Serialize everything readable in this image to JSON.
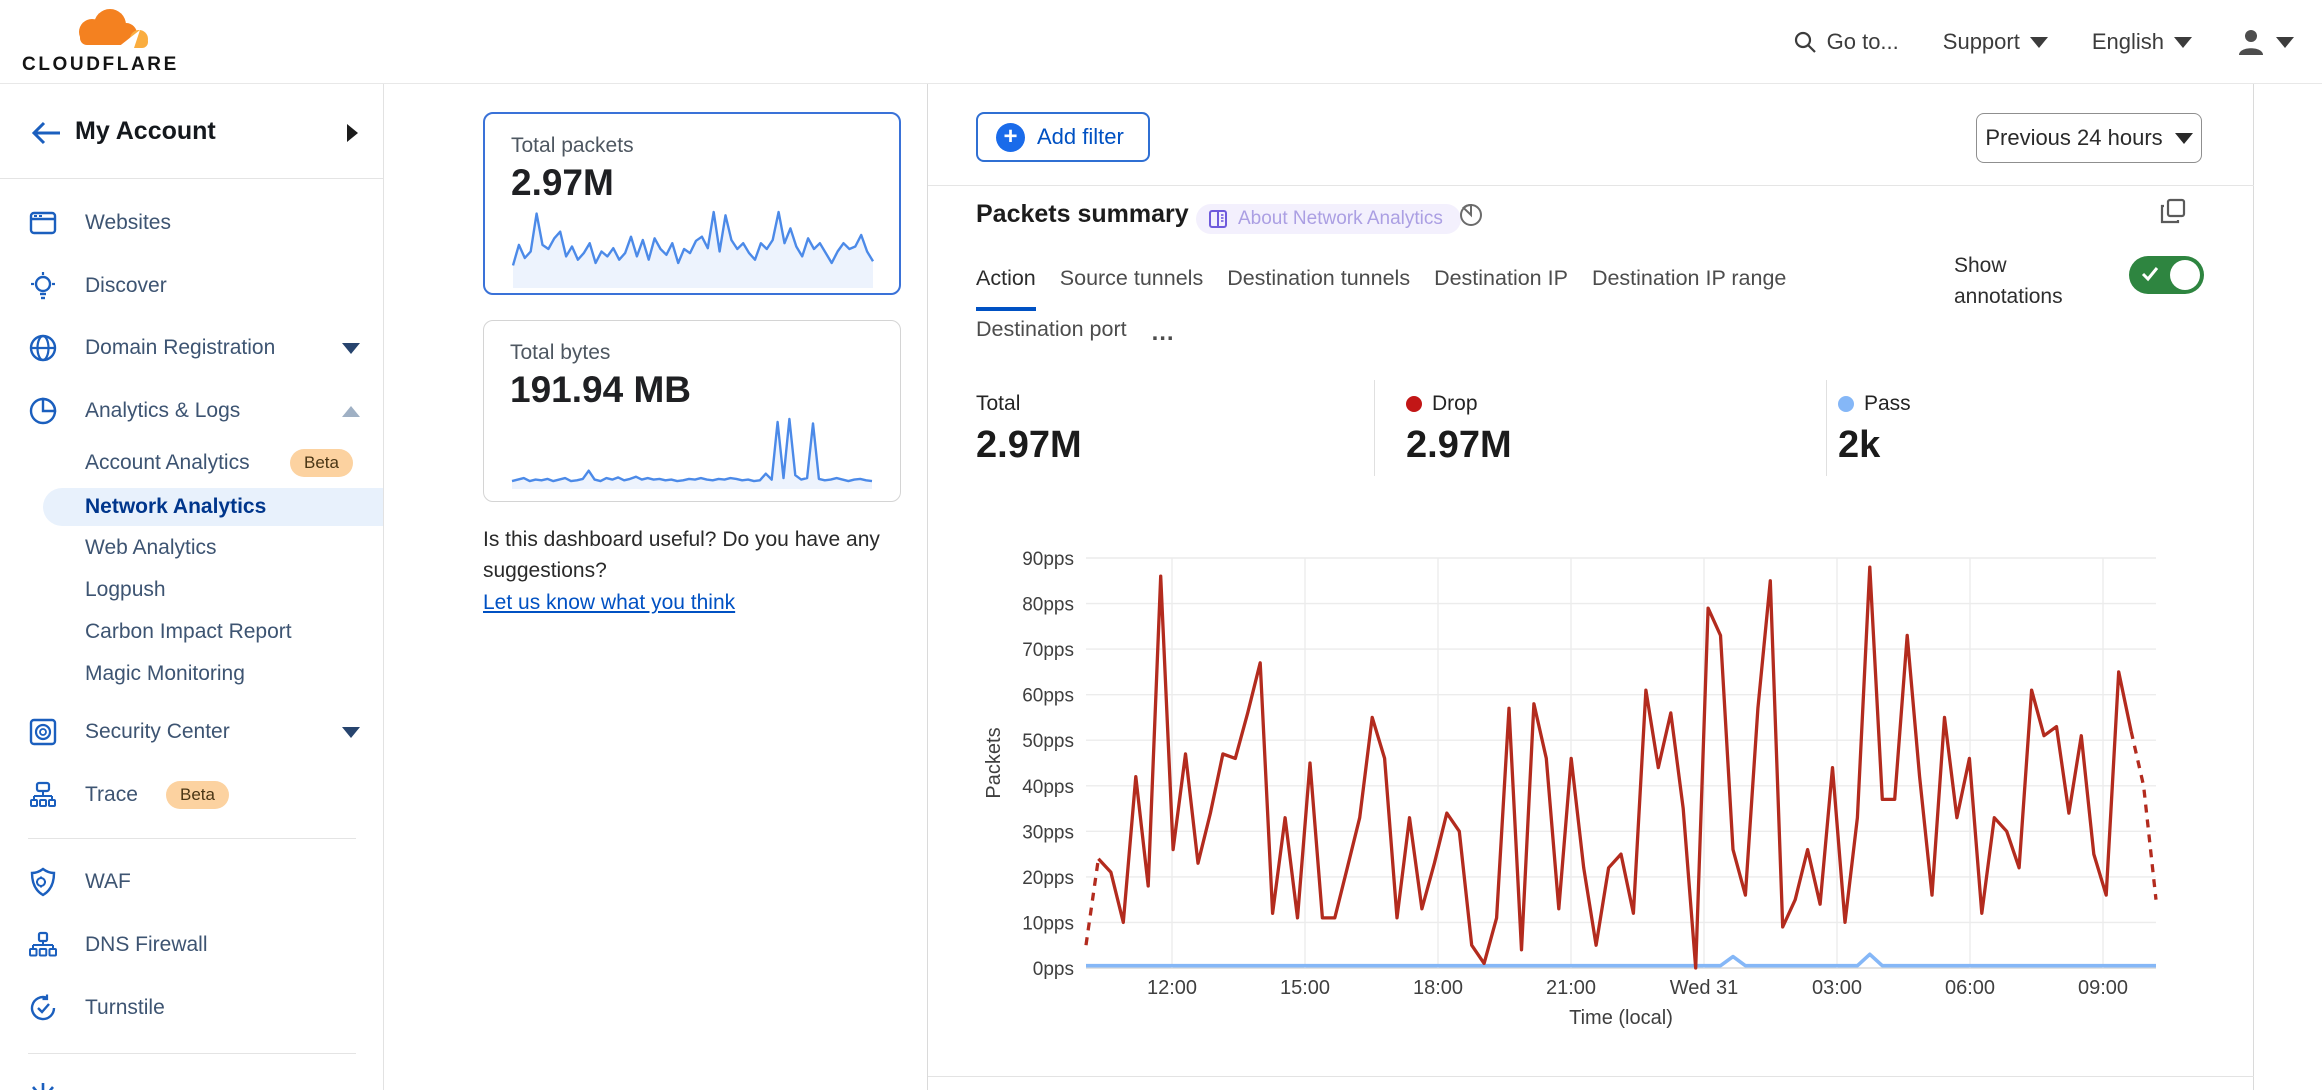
{
  "header": {
    "logo_text": "CLOUDFLARE",
    "goto_label": "Go to...",
    "support_label": "Support",
    "language_label": "English"
  },
  "sidebar": {
    "title": "My Account",
    "items": {
      "websites": "Websites",
      "discover": "Discover",
      "domain_registration": "Domain Registration",
      "analytics_logs": "Analytics & Logs",
      "account_analytics": "Account Analytics",
      "account_analytics_badge": "Beta",
      "network_analytics": "Network Analytics",
      "web_analytics": "Web Analytics",
      "logpush": "Logpush",
      "carbon_impact_report": "Carbon Impact Report",
      "magic_monitoring": "Magic Monitoring",
      "security_center": "Security Center",
      "trace": "Trace",
      "trace_badge": "Beta",
      "waf": "WAF",
      "dns_firewall": "DNS Firewall",
      "turnstile": "Turnstile"
    }
  },
  "cards": {
    "packets": {
      "title": "Total packets",
      "value": "2.97M"
    },
    "bytes": {
      "title": "Total bytes",
      "value": "191.94 MB"
    }
  },
  "feedback": {
    "question": "Is this dashboard useful? Do you have any suggestions?",
    "link": "Let us know what you think"
  },
  "toolbar": {
    "add_filter": "Add filter",
    "time_range": "Previous 24 hours"
  },
  "panel": {
    "title": "Packets summary",
    "about_badge": "About Network Analytics",
    "show_annotations": "Show annotations",
    "tabs": {
      "action": "Action",
      "source_tunnels": "Source tunnels",
      "destination_tunnels": "Destination tunnels",
      "destination_ip": "Destination IP",
      "destination_ip_range": "Destination IP range",
      "destination_port": "Destination port",
      "more": "…"
    },
    "stats": {
      "total_label": "Total",
      "total_value": "2.97M",
      "drop_label": "Drop",
      "drop_value": "2.97M",
      "pass_label": "Pass",
      "pass_value": "2k"
    }
  },
  "colors": {
    "accent_blue": "#0051c3",
    "drop_line": "#b32b1e",
    "drop_dot": "#c21616",
    "pass_line": "#85b7f7",
    "toggle_green": "#2e8540",
    "spark_blue": "#4c8ae8"
  },
  "chart_data": [
    {
      "type": "line",
      "title": "Packets summary",
      "xlabel": "Time (local)",
      "ylabel": "Packets",
      "x_ticks": [
        "12:00",
        "15:00",
        "18:00",
        "21:00",
        "Wed 31",
        "03:00",
        "06:00",
        "09:00"
      ],
      "y_ticks": [
        "0pps",
        "10pps",
        "20pps",
        "30pps",
        "40pps",
        "50pps",
        "60pps",
        "70pps",
        "80pps",
        "90pps"
      ],
      "ylim": [
        0,
        90
      ],
      "grid": true,
      "legend_position": "top-stats-row",
      "note": "red Drop series has dashed first and last segments; 15-min samples over previous 24 hours",
      "series": [
        {
          "name": "Drop",
          "values": [
            5,
            24,
            21,
            10,
            42,
            18,
            86,
            26,
            47,
            23,
            34,
            47,
            46,
            56,
            67,
            12,
            33,
            11,
            45,
            11,
            11,
            22,
            33,
            55,
            46,
            11,
            33,
            13,
            23,
            34,
            30,
            5,
            1,
            11,
            57,
            4,
            58,
            46,
            13,
            46,
            22,
            5,
            22,
            25,
            12,
            61,
            44,
            56,
            35,
            0,
            79,
            73,
            26,
            16,
            57,
            85,
            9,
            15,
            26,
            14,
            44,
            10,
            33,
            88,
            37,
            37,
            73,
            42,
            16,
            55,
            33,
            46,
            12,
            33,
            30,
            22,
            61,
            51,
            53,
            34,
            51,
            25,
            16,
            65,
            52,
            40,
            15
          ]
        },
        {
          "name": "Pass",
          "values": [
            0.5,
            0.5,
            0.5,
            0.5,
            0.5,
            0.5,
            0.5,
            0.5,
            0.5,
            0.5,
            0.5,
            0.5,
            0.5,
            0.5,
            0.5,
            0.5,
            0.5,
            0.5,
            0.5,
            0.5,
            0.5,
            0.5,
            0.5,
            0.5,
            0.5,
            0.5,
            0.5,
            0.5,
            0.5,
            0.5,
            0.5,
            0.5,
            0.5,
            0.5,
            0.5,
            0.5,
            0.5,
            0.5,
            0.5,
            0.5,
            0.5,
            0.5,
            0.5,
            0.5,
            0.5,
            0.5,
            0.5,
            0.5,
            0.5,
            0.5,
            0.5,
            0.5,
            2.5,
            0.5,
            0.5,
            0.5,
            0.5,
            0.5,
            0.5,
            0.5,
            0.5,
            0.5,
            0.5,
            3,
            0.5,
            0.5,
            0.5,
            0.5,
            0.5,
            0.5,
            0.5,
            0.5,
            0.5,
            0.5,
            0.5,
            0.5,
            0.5,
            0.5,
            0.5,
            0.5,
            0.5,
            0.5,
            0.5,
            0.5,
            0.5,
            0.5,
            0.5
          ]
        }
      ]
    },
    {
      "type": "line",
      "title": "Total packets sparkline",
      "values": [
        25,
        50,
        34,
        42,
        88,
        50,
        45,
        58,
        66,
        36,
        48,
        32,
        40,
        52,
        28,
        42,
        36,
        46,
        32,
        40,
        60,
        36,
        56,
        32,
        58,
        45,
        38,
        52,
        28,
        45,
        40,
        55,
        60,
        46,
        90,
        42,
        86,
        56,
        45,
        52,
        40,
        32,
        52,
        45,
        56,
        90,
        52,
        70,
        48,
        36,
        58,
        45,
        52,
        40,
        28,
        42,
        52,
        45,
        48,
        62,
        42,
        30
      ]
    },
    {
      "type": "line",
      "title": "Total bytes sparkline",
      "values": [
        8,
        10,
        12,
        8,
        10,
        9,
        11,
        8,
        10,
        12,
        8,
        9,
        11,
        22,
        10,
        8,
        12,
        10,
        13,
        9,
        11,
        14,
        10,
        12,
        10,
        11,
        9,
        10,
        8,
        9,
        11,
        10,
        12,
        10,
        9,
        11,
        10,
        12,
        11,
        9,
        10,
        8,
        9,
        18,
        10,
        88,
        12,
        92,
        16,
        10,
        12,
        86,
        11,
        9,
        10,
        12,
        10,
        8,
        10,
        11,
        9,
        8
      ]
    }
  ]
}
